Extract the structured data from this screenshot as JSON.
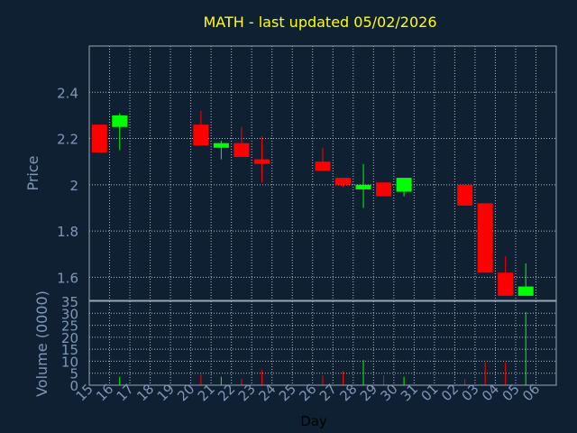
{
  "chart_data": {
    "type": "candlestick",
    "title": "MATH - last updated 05/02/2026",
    "xlabel": "Day",
    "price_panel": {
      "ylabel": "Price",
      "ylim": [
        1.5,
        2.6
      ],
      "yticks": [
        "1.6",
        "1.8",
        "2",
        "2.2",
        "2.4"
      ],
      "ytick_values": [
        1.6,
        1.8,
        2.0,
        2.2,
        2.4
      ],
      "grid": true
    },
    "volume_panel": {
      "ylabel": "Volume (0000)",
      "ylim": [
        0,
        35
      ],
      "yticks": [
        "0",
        "5",
        "10",
        "15",
        "20",
        "25",
        "30",
        "35"
      ],
      "ytick_values": [
        0,
        5,
        10,
        15,
        20,
        25,
        30,
        35
      ],
      "grid": true
    },
    "categories": [
      "15",
      "16",
      "17",
      "18",
      "19",
      "20",
      "21",
      "22",
      "23",
      "24",
      "25",
      "26",
      "27",
      "28",
      "29",
      "30",
      "31",
      "01",
      "02",
      "03",
      "04",
      "05",
      "06"
    ],
    "candles": [
      {
        "day": "15",
        "open": 2.26,
        "high": 2.26,
        "low": 2.14,
        "close": 2.14,
        "volume": 0
      },
      {
        "day": "16",
        "open": 2.25,
        "high": 2.31,
        "low": 2.15,
        "close": 2.3,
        "volume": 3.5
      },
      {
        "day": "20",
        "open": 2.26,
        "high": 2.32,
        "low": 2.17,
        "close": 2.17,
        "volume": 4.5
      },
      {
        "day": "21",
        "open": 2.16,
        "high": 2.19,
        "low": 2.11,
        "close": 2.18,
        "volume": 3.5
      },
      {
        "day": "22",
        "open": 2.18,
        "high": 2.25,
        "low": 2.12,
        "close": 2.12,
        "volume": 2.5
      },
      {
        "day": "23",
        "open": 2.11,
        "high": 2.21,
        "low": 2.01,
        "close": 2.09,
        "volume": 6.5
      },
      {
        "day": "26",
        "open": 2.1,
        "high": 2.16,
        "low": 2.06,
        "close": 2.06,
        "volume": 4
      },
      {
        "day": "27",
        "open": 2.03,
        "high": 2.03,
        "low": 1.99,
        "close": 2.0,
        "volume": 6
      },
      {
        "day": "28",
        "open": 1.98,
        "high": 2.09,
        "low": 1.9,
        "close": 2.0,
        "volume": 10.5
      },
      {
        "day": "29",
        "open": 2.01,
        "high": 2.01,
        "low": 1.95,
        "close": 1.95,
        "volume": 4
      },
      {
        "day": "30",
        "open": 1.97,
        "high": 2.03,
        "low": 1.95,
        "close": 2.03,
        "volume": 3.5
      },
      {
        "day": "02",
        "open": 2.0,
        "high": 2.0,
        "low": 1.91,
        "close": 1.91,
        "volume": 2.5
      },
      {
        "day": "03",
        "open": 1.92,
        "high": 1.92,
        "low": 1.62,
        "close": 1.62,
        "volume": 9.5
      },
      {
        "day": "04",
        "open": 1.62,
        "high": 1.69,
        "low": 1.52,
        "close": 1.52,
        "volume": 9.5
      },
      {
        "day": "05",
        "open": 1.52,
        "high": 1.66,
        "low": 1.52,
        "close": 1.56,
        "volume": 30.5
      }
    ],
    "colors": {
      "background": "#0f2033",
      "up": "#00ff00",
      "down": "#ff0000",
      "grid": "#b4bcc6",
      "frame": "#9aa6b4",
      "title": "#ffff00",
      "text": "#7f97b7",
      "xlabel": "#000000"
    }
  }
}
